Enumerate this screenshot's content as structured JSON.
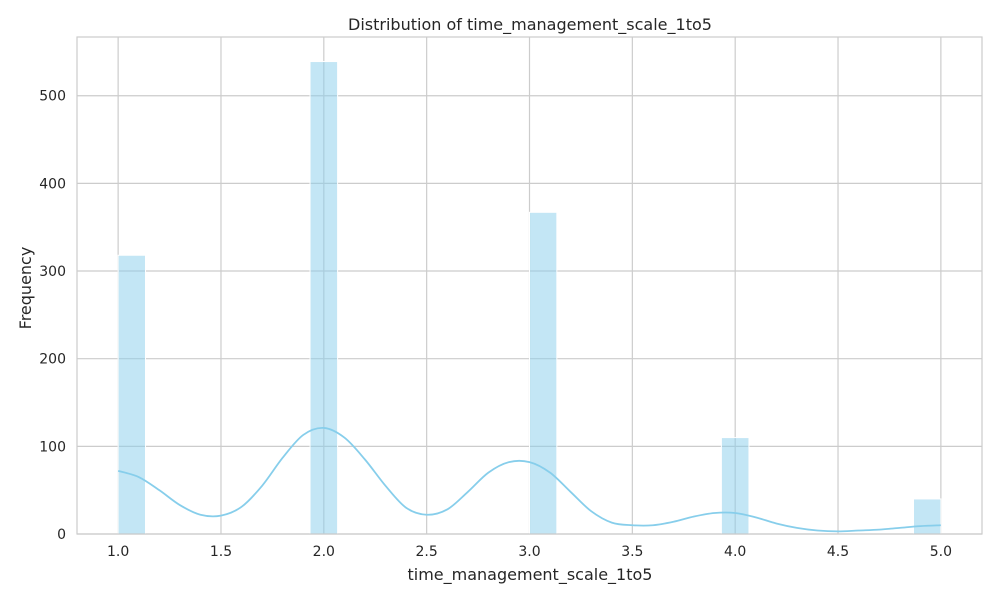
{
  "chart_data": {
    "type": "bar",
    "subtype": "histogram_with_kde",
    "title": "Distribution of time_management_scale_1to5",
    "xlabel": "time_management_scale_1to5",
    "ylabel": "Frequency",
    "xlim": [
      0.8,
      5.2
    ],
    "ylim": [
      0,
      567
    ],
    "x_ticks": [
      1.0,
      1.5,
      2.0,
      2.5,
      3.0,
      3.5,
      4.0,
      4.5,
      5.0
    ],
    "x_tick_labels": [
      "1.0",
      "1.5",
      "2.0",
      "2.5",
      "3.0",
      "3.5",
      "4.0",
      "4.5",
      "5.0"
    ],
    "y_ticks": [
      0,
      100,
      200,
      300,
      400,
      500
    ],
    "y_tick_labels": [
      "0",
      "100",
      "200",
      "300",
      "400",
      "500"
    ],
    "grid": true,
    "colors": {
      "bar": "#87ceeb",
      "bar_edge": "#ffffff",
      "kde": "#87ceeb",
      "grid": "#cccccc",
      "spine": "#cccccc"
    },
    "bins": [
      {
        "x0": 1.0,
        "x1": 1.133,
        "count": 318
      },
      {
        "x0": 1.933,
        "x1": 2.067,
        "count": 539
      },
      {
        "x0": 3.0,
        "x1": 3.133,
        "count": 367
      },
      {
        "x0": 3.933,
        "x1": 4.067,
        "count": 110
      },
      {
        "x0": 4.867,
        "x1": 5.0,
        "count": 40
      }
    ],
    "kde": {
      "x": [
        1.0,
        1.1,
        1.2,
        1.3,
        1.4,
        1.5,
        1.6,
        1.7,
        1.8,
        1.9,
        2.0,
        2.1,
        2.2,
        2.3,
        2.4,
        2.5,
        2.6,
        2.7,
        2.8,
        2.9,
        3.0,
        3.1,
        3.2,
        3.3,
        3.4,
        3.5,
        3.6,
        3.7,
        3.8,
        3.9,
        4.0,
        4.1,
        4.2,
        4.3,
        4.4,
        4.5,
        4.6,
        4.7,
        4.8,
        4.9,
        5.0
      ],
      "y": [
        72,
        65,
        50,
        33,
        22,
        21,
        31,
        55,
        87,
        113,
        121,
        110,
        85,
        55,
        30,
        22,
        28,
        48,
        70,
        82,
        82,
        70,
        48,
        26,
        13,
        10,
        10,
        14,
        20,
        24,
        24,
        19,
        12,
        7,
        4,
        3,
        4,
        5,
        7,
        9,
        10
      ]
    }
  }
}
